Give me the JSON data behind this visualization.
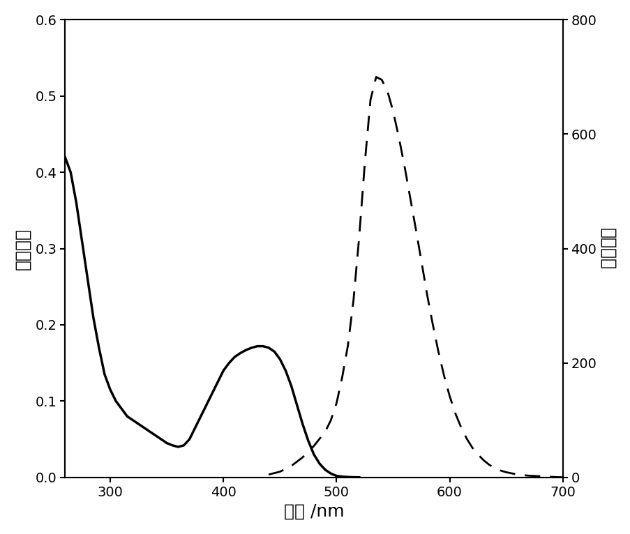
{
  "title": "",
  "xlabel": "波长 /nm",
  "ylabel_left": "紫外吸收",
  "ylabel_right": "荧光发射",
  "xlim": [
    260,
    700
  ],
  "ylim_left": [
    0.0,
    0.6
  ],
  "ylim_right": [
    0,
    800
  ],
  "xticks": [
    300,
    400,
    500,
    600,
    700
  ],
  "yticks_left": [
    0.0,
    0.1,
    0.2,
    0.3,
    0.4,
    0.5,
    0.6
  ],
  "yticks_right": [
    0,
    200,
    400,
    600,
    800
  ],
  "background_color": "#ffffff",
  "line_color": "#000000",
  "absorption": {
    "x": [
      260,
      265,
      270,
      275,
      280,
      285,
      290,
      295,
      300,
      305,
      310,
      315,
      320,
      325,
      330,
      335,
      340,
      345,
      350,
      355,
      360,
      365,
      370,
      375,
      380,
      385,
      390,
      395,
      400,
      405,
      410,
      415,
      420,
      425,
      430,
      435,
      440,
      445,
      450,
      455,
      460,
      465,
      470,
      475,
      480,
      485,
      490,
      495,
      500,
      505,
      510,
      515,
      520
    ],
    "y": [
      0.42,
      0.4,
      0.36,
      0.31,
      0.26,
      0.21,
      0.17,
      0.135,
      0.115,
      0.1,
      0.09,
      0.08,
      0.075,
      0.07,
      0.065,
      0.06,
      0.055,
      0.05,
      0.045,
      0.042,
      0.04,
      0.042,
      0.05,
      0.065,
      0.08,
      0.095,
      0.11,
      0.125,
      0.14,
      0.15,
      0.158,
      0.163,
      0.167,
      0.17,
      0.172,
      0.172,
      0.17,
      0.165,
      0.155,
      0.14,
      0.12,
      0.095,
      0.07,
      0.048,
      0.03,
      0.018,
      0.01,
      0.005,
      0.002,
      0.001,
      0.0005,
      0.0002,
      0.0001
    ]
  },
  "emission": {
    "x": [
      440,
      450,
      460,
      470,
      480,
      490,
      495,
      500,
      505,
      510,
      515,
      520,
      525,
      530,
      535,
      540,
      545,
      550,
      555,
      560,
      565,
      570,
      575,
      580,
      585,
      590,
      595,
      600,
      605,
      610,
      615,
      620,
      625,
      630,
      635,
      640,
      645,
      650,
      655,
      660,
      665,
      670,
      675,
      680,
      685,
      690,
      695,
      700
    ],
    "y": [
      5,
      10,
      20,
      35,
      55,
      80,
      100,
      130,
      175,
      230,
      310,
      420,
      550,
      660,
      700,
      695,
      675,
      640,
      595,
      545,
      490,
      435,
      378,
      320,
      268,
      220,
      178,
      142,
      112,
      88,
      68,
      52,
      40,
      30,
      22,
      16,
      12,
      9,
      7,
      5,
      4,
      3,
      2.5,
      2,
      1.5,
      1,
      0.5,
      0.2
    ]
  }
}
